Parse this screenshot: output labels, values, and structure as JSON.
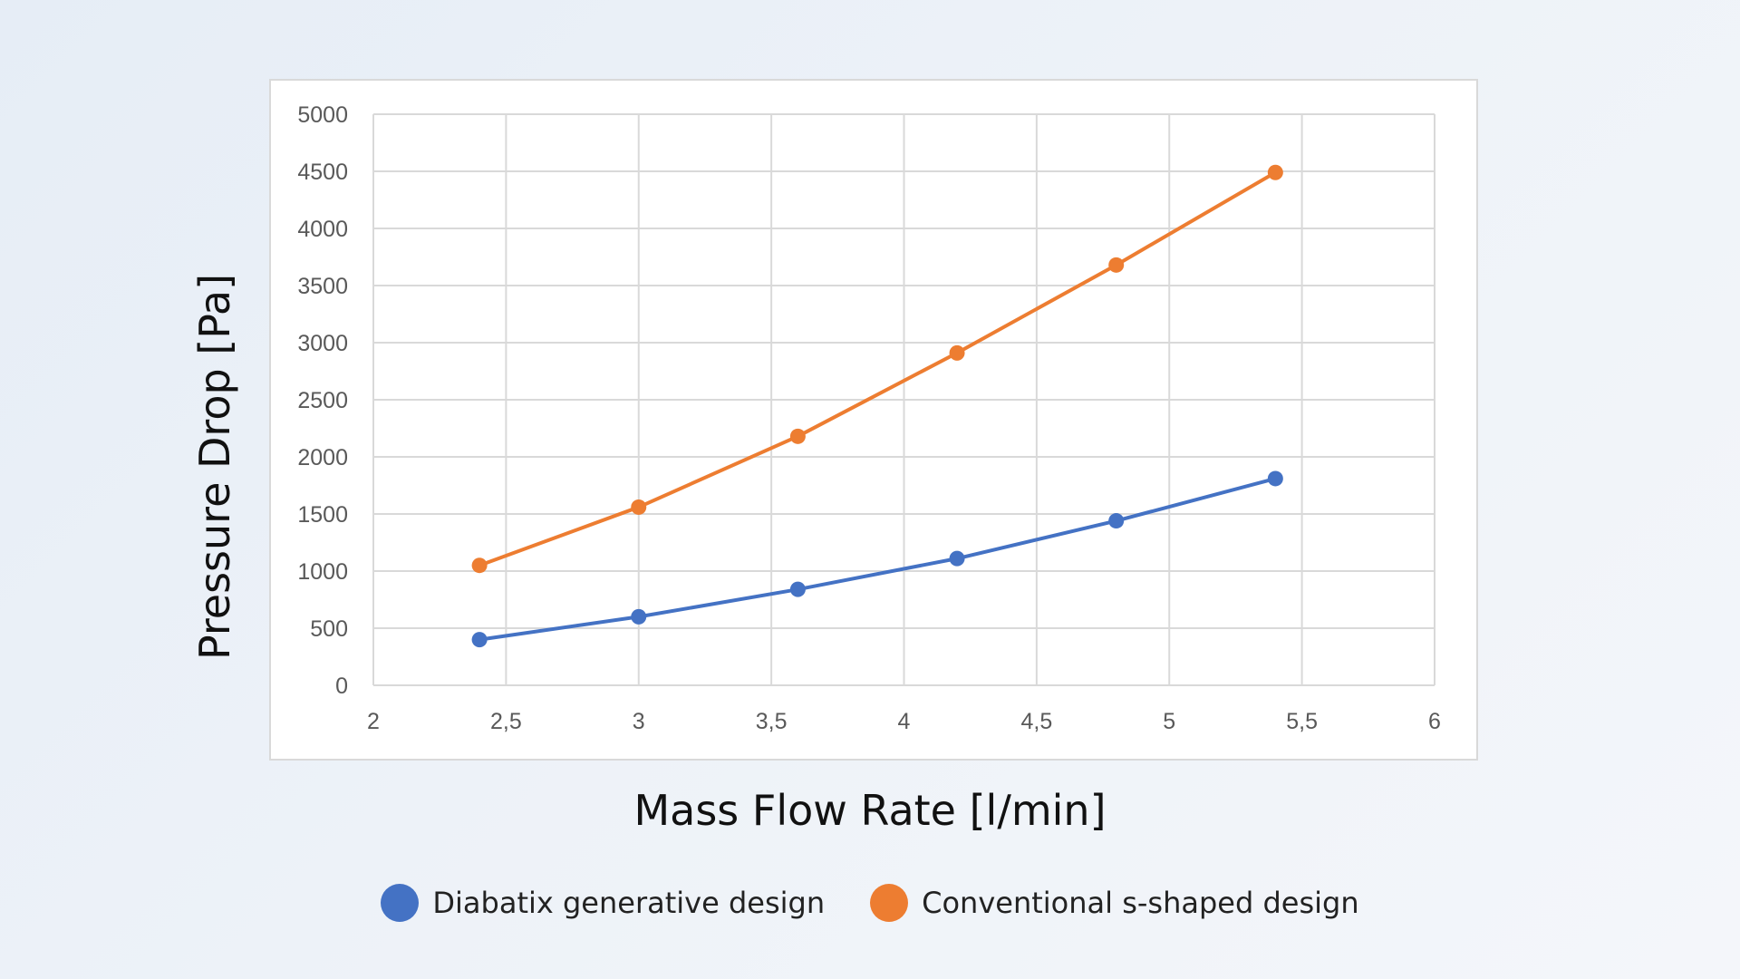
{
  "chart_data": {
    "type": "line",
    "title": "",
    "xlabel": "Mass Flow Rate [l/min]",
    "ylabel": "Pressure Drop [Pa]",
    "xlim": [
      2,
      6
    ],
    "ylim": [
      0,
      5000
    ],
    "x_ticks": [
      "2",
      "2,5",
      "3",
      "3,5",
      "4",
      "4,5",
      "5",
      "5,5",
      "6"
    ],
    "y_ticks": [
      "0",
      "500",
      "1000",
      "1500",
      "2000",
      "2500",
      "3000",
      "3500",
      "4000",
      "4500",
      "5000"
    ],
    "grid": true,
    "legend_position": "bottom",
    "series": [
      {
        "name": "Diabatix generative design",
        "color": "#4472c4",
        "x": [
          2.4,
          3.0,
          3.6,
          4.2,
          4.8,
          5.4
        ],
        "y": [
          400,
          600,
          840,
          1110,
          1440,
          1810
        ]
      },
      {
        "name": "Conventional s-shaped design",
        "color": "#ed7d31",
        "x": [
          2.4,
          3.0,
          3.6,
          4.2,
          4.8,
          5.4
        ],
        "y": [
          1050,
          1560,
          2180,
          2910,
          3680,
          4490
        ]
      }
    ]
  }
}
